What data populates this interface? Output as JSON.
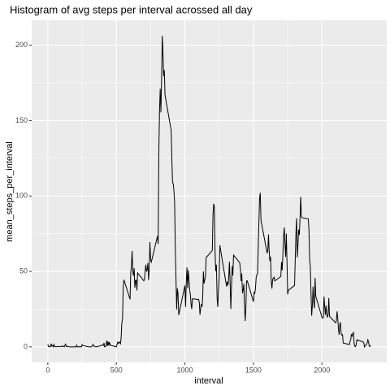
{
  "chart_data": {
    "type": "line",
    "title": "Histogram of avg steps per interval acrossed all day",
    "x_label": "interval",
    "y_label": "mean_steps_per_interval",
    "xlim": [
      -117.75,
      2472.75
    ],
    "xticks": [
      0,
      500,
      1000,
      1500,
      2000
    ],
    "ylim": [
      -10.3,
      216.5
    ],
    "yticks": [
      0,
      50,
      100,
      150,
      200
    ],
    "grid": true,
    "x": [
      0,
      5,
      10,
      15,
      20,
      25,
      30,
      35,
      40,
      45,
      50,
      55,
      100,
      105,
      110,
      115,
      120,
      125,
      130,
      135,
      140,
      145,
      150,
      155,
      200,
      205,
      210,
      215,
      220,
      225,
      230,
      235,
      240,
      245,
      250,
      255,
      300,
      305,
      310,
      315,
      320,
      325,
      330,
      335,
      340,
      345,
      350,
      355,
      400,
      405,
      410,
      415,
      420,
      425,
      430,
      435,
      440,
      445,
      450,
      455,
      500,
      505,
      510,
      515,
      520,
      525,
      530,
      535,
      540,
      545,
      550,
      555,
      600,
      605,
      610,
      615,
      620,
      625,
      630,
      635,
      640,
      645,
      650,
      655,
      700,
      705,
      710,
      715,
      720,
      725,
      730,
      735,
      740,
      745,
      750,
      755,
      800,
      805,
      810,
      815,
      820,
      825,
      830,
      835,
      840,
      845,
      850,
      855,
      900,
      905,
      910,
      915,
      920,
      925,
      930,
      935,
      940,
      945,
      950,
      955,
      1000,
      1005,
      1010,
      1015,
      1020,
      1025,
      1030,
      1035,
      1040,
      1045,
      1050,
      1055,
      1100,
      1105,
      1110,
      1115,
      1120,
      1125,
      1130,
      1135,
      1140,
      1145,
      1150,
      1155,
      1200,
      1205,
      1210,
      1215,
      1220,
      1225,
      1230,
      1235,
      1240,
      1245,
      1250,
      1255,
      1300,
      1305,
      1310,
      1315,
      1320,
      1325,
      1330,
      1335,
      1340,
      1345,
      1350,
      1355,
      1400,
      1405,
      1410,
      1415,
      1420,
      1425,
      1430,
      1435,
      1440,
      1445,
      1450,
      1455,
      1500,
      1505,
      1510,
      1515,
      1520,
      1525,
      1530,
      1535,
      1540,
      1545,
      1550,
      1555,
      1600,
      1605,
      1610,
      1615,
      1620,
      1625,
      1630,
      1635,
      1640,
      1645,
      1650,
      1655,
      1700,
      1705,
      1710,
      1715,
      1720,
      1725,
      1730,
      1735,
      1740,
      1745,
      1750,
      1755,
      1800,
      1805,
      1810,
      1815,
      1820,
      1825,
      1830,
      1835,
      1840,
      1845,
      1850,
      1855,
      1900,
      1905,
      1910,
      1915,
      1920,
      1925,
      1930,
      1935,
      1940,
      1945,
      1950,
      1955,
      2000,
      2005,
      2010,
      2015,
      2020,
      2025,
      2030,
      2035,
      2040,
      2045,
      2050,
      2055,
      2100,
      2105,
      2110,
      2115,
      2120,
      2125,
      2130,
      2135,
      2140,
      2145,
      2150,
      2155,
      2200,
      2205,
      2210,
      2215,
      2220,
      2225,
      2230,
      2235,
      2240,
      2245,
      2250,
      2255,
      2300,
      2305,
      2310,
      2315,
      2320,
      2325,
      2330,
      2335,
      2340,
      2345,
      2350,
      2355
    ],
    "series": [
      {
        "color": "#000000",
        "values": [
          1.7,
          0.3,
          0.1,
          0.2,
          0.1,
          2.1,
          0.5,
          0.9,
          0,
          1.5,
          0.3,
          0.1,
          0.3,
          0.7,
          0.2,
          0.3,
          0,
          1.1,
          1.8,
          0.2,
          0.2,
          0.4,
          0.3,
          0,
          0,
          0,
          1.1,
          0,
          0,
          0.1,
          0,
          0.2,
          0,
          0,
          1.5,
          0.9,
          0,
          0,
          0,
          0,
          0.2,
          0.6,
          1.6,
          0.6,
          0.5,
          0.1,
          0,
          0,
          1.2,
          0.9,
          2.6,
          0,
          0.3,
          0.4,
          4.1,
          0.7,
          3.5,
          0.8,
          3.1,
          1.1,
          0,
          1.6,
          3,
          2.2,
          3.3,
          3,
          2.1,
          6.1,
          16,
          18.3,
          39.5,
          44.5,
          31.5,
          49.3,
          53.8,
          63.5,
          50,
          47.1,
          52.2,
          39.3,
          44,
          44.2,
          37.4,
          49,
          43.8,
          44.4,
          50.5,
          54.5,
          49.9,
          51,
          55.7,
          44.3,
          52.3,
          69.5,
          57.8,
          56.2,
          73.4,
          68.2,
          129.4,
          157.5,
          171.2,
          155.4,
          177.3,
          206.2,
          195.9,
          179.6,
          183.4,
          167,
          143.5,
          124,
          109.1,
          108.1,
          103.7,
          95.9,
          66.2,
          45.2,
          24.8,
          38.8,
          35,
          21.1,
          40.6,
          26.5,
          42.4,
          52.7,
          38.9,
          50.8,
          44.3,
          37.4,
          34.7,
          28.3,
          25.1,
          31.9,
          31.4,
          29.7,
          21.3,
          25.5,
          28.4,
          26.5,
          33.4,
          50,
          42,
          44.6,
          46,
          59.2,
          63.9,
          87.7,
          94.8,
          92.8,
          63.4,
          50.2,
          54.5,
          32.4,
          26.5,
          37.7,
          45.1,
          67.3,
          42.3,
          39.9,
          43.3,
          41,
          46.2,
          56.4,
          42.8,
          25.1,
          40,
          53.5,
          47.3,
          60.8,
          55.8,
          51.5,
          43.6,
          48.7,
          35.5,
          37.5,
          41.8,
          27.5,
          17.1,
          26.1,
          43.6,
          43.8,
          30,
          36.1,
          35.5,
          38.8,
          46,
          47.8,
          48.1,
          65.3,
          82.9,
          98.7,
          102.1,
          84,
          62.1,
          64.1,
          74.5,
          63.2,
          56.9,
          59.8,
          43.9,
          38.6,
          44.7,
          45.5,
          46.2,
          43.7,
          46.6,
          56.3,
          50.7,
          61.2,
          73.4,
          79.1,
          68.9,
          59.7,
          75.1,
          56.5,
          34.8,
          37.5,
          40.7,
          58,
          74.7,
          85.3,
          59.3,
          67.8,
          77.7,
          74.2,
          85.3,
          99.5,
          86.6,
          85.6,
          84.9,
          77.8,
          58,
          53.4,
          36.3,
          20.7,
          27.4,
          40,
          30.2,
          25.5,
          45.7,
          33.5,
          19.6,
          19,
          19.3,
          33.3,
          26.8,
          21.2,
          27.3,
          21.3,
          19.5,
          21.3,
          32.3,
          20.2,
          15.9,
          17.2,
          23.5,
          19.2,
          12.5,
          8,
          14.7,
          16.3,
          8.7,
          7.8,
          8.1,
          2.6,
          1.5,
          3.7,
          4.8,
          8.5,
          7.1,
          8.7,
          9.8,
          2.2,
          0.3,
          0.1,
          1.6,
          4.6,
          3.3,
          2.8,
          0,
          0.8,
          1,
          1.6,
          2.6,
          4.7,
          3.3,
          0.6,
          0.2,
          1.1
        ]
      }
    ]
  }
}
